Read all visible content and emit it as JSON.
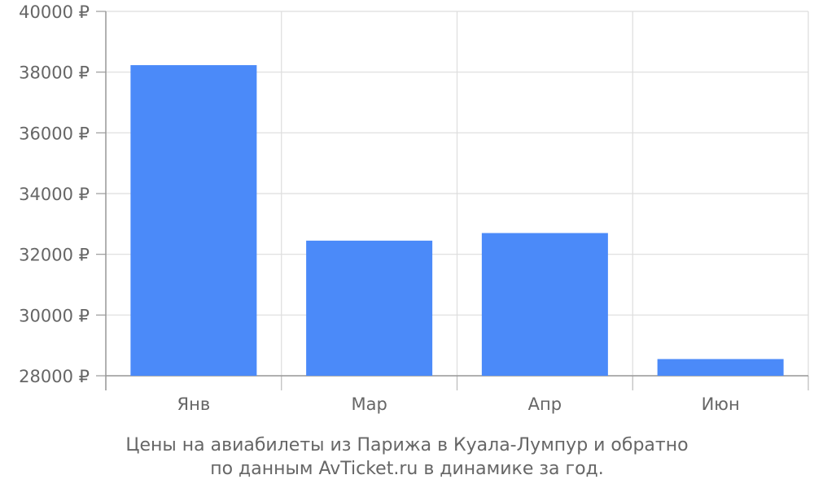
{
  "chart_data": {
    "type": "bar",
    "categories": [
      "Янв",
      "Мар",
      "Апр",
      "Июн"
    ],
    "values": [
      38230,
      32450,
      32700,
      28550
    ],
    "ylim": [
      28000,
      40000
    ],
    "ytick_step": 2000,
    "ytick_labels": [
      "28000 ₽",
      "30000 ₽",
      "32000 ₽",
      "34000 ₽",
      "36000 ₽",
      "38000 ₽",
      "40000 ₽"
    ],
    "title": "",
    "xlabel": "",
    "ylabel": "",
    "grid": true,
    "legend": "none",
    "bar_color": "#4b8af9"
  },
  "caption": {
    "line1": "Цены на авиабилеты из Парижа в Куала-Лумпур и обратно",
    "line2": "по данным AvTicket.ru в динамике за год."
  }
}
